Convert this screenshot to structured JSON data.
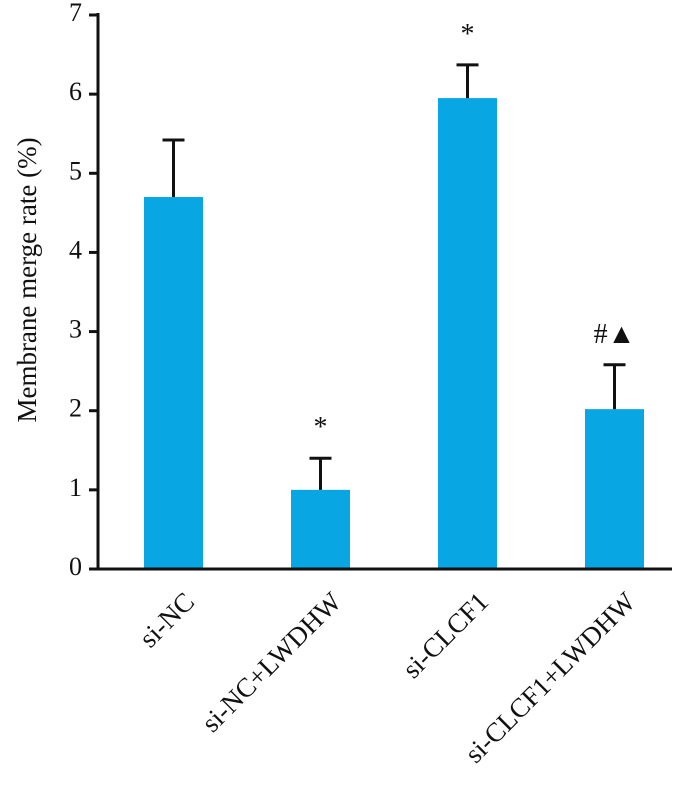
{
  "chart_data": {
    "type": "bar",
    "y_label": "Membrane merge rate (%)",
    "categories": [
      "si-NC",
      "si-NC+LWDHW",
      "si-CLCF1",
      "si-CLCF1+LWDHW"
    ],
    "values": [
      4.7,
      1.0,
      5.95,
      2.02
    ],
    "errors": [
      0.72,
      0.4,
      0.42,
      0.56
    ],
    "annotations": [
      null,
      "*",
      "*",
      "#▲"
    ],
    "color": "#08a6e2",
    "ylim": [
      0,
      7
    ],
    "yticks": [
      0,
      1,
      2,
      3,
      4,
      5,
      6,
      7
    ],
    "grid": false
  }
}
